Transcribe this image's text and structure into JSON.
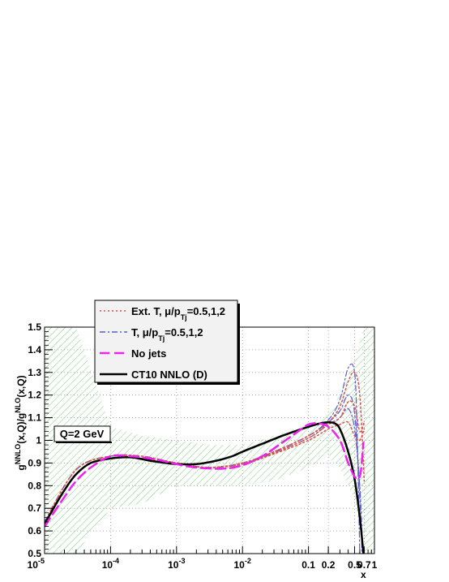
{
  "chart_data": {
    "type": "line",
    "xscale": "log",
    "xlim": [
      1e-05,
      1
    ],
    "ylim": [
      0.5,
      1.5
    ],
    "grid": true,
    "legend_position": "top-left",
    "xlabel": "x",
    "ylabel": {
      "g": "g",
      "sup1": "NNLO",
      "mid": "(x,Q)/g",
      "sup2": "NLO",
      "end": "(x,Q)"
    },
    "annotation": "Q=2 GeV",
    "x_ticks": [
      {
        "v": 1e-05,
        "base": "10",
        "exp": "-5"
      },
      {
        "v": 0.0001,
        "base": "10",
        "exp": "-4"
      },
      {
        "v": 0.001,
        "base": "10",
        "exp": "-3"
      },
      {
        "v": 0.01,
        "base": "10",
        "exp": "-2"
      },
      {
        "v": 0.1,
        "base": "0.1",
        "exp": ""
      },
      {
        "v": 0.2,
        "base": "0.2",
        "exp": ""
      },
      {
        "v": 0.5,
        "base": "0.5",
        "exp": ""
      },
      {
        "v": 0.7,
        "base": "0.7",
        "exp": ""
      },
      {
        "v": 1,
        "base": "1",
        "exp": ""
      }
    ],
    "y_ticks": [
      "0.5",
      "0.6",
      "0.7",
      "0.8",
      "0.9",
      "1",
      "1.1",
      "1.2",
      "1.3",
      "1.4",
      "1.5"
    ],
    "legend": [
      {
        "main": "Ext. T, μ/p",
        "sub": "Tj",
        "rest": "=0.5,1,2",
        "color": "#d9534f",
        "dash": "2,3",
        "width": 1.5
      },
      {
        "main": "T, μ/p",
        "sub": "Tj",
        "rest": "=0.5,1,2",
        "color": "#5b5bd6",
        "dash": "7,3,2,3",
        "width": 1.5
      },
      {
        "main": "No jets",
        "sub": "",
        "rest": "",
        "color": "#ee22ee",
        "dash": "12,6",
        "width": 2.5
      },
      {
        "main": "CT10 NNLO (D)",
        "sub": "",
        "rest": "",
        "color": "#000000",
        "dash": "",
        "width": 2.5
      }
    ],
    "band": {
      "color": "#7ccf7c",
      "x": [
        1e-05,
        3e-05,
        0.0001,
        0.0003,
        0.001,
        0.003,
        0.01,
        0.03,
        0.1,
        0.2,
        0.3,
        0.5,
        0.7,
        1
      ],
      "upper": [
        1.5,
        1.5,
        1.06,
        1.02,
        1.0,
        0.98,
        0.98,
        1.02,
        1.07,
        1.12,
        1.2,
        1.36,
        1.5,
        1.5
      ],
      "lower": [
        0.5,
        0.5,
        0.7,
        0.72,
        0.8,
        0.8,
        0.8,
        0.82,
        0.88,
        0.93,
        0.88,
        0.74,
        0.5,
        0.5
      ]
    },
    "series": [
      {
        "name": "CT10 NNLO (D)",
        "color": "#000000",
        "dash": "",
        "width": 2.5,
        "x": [
          1e-05,
          1.5e-05,
          2e-05,
          3e-05,
          5e-05,
          0.0001,
          0.0002,
          0.0004,
          0.0007,
          0.001,
          0.002,
          0.004,
          0.007,
          0.01,
          0.02,
          0.04,
          0.07,
          0.1,
          0.15,
          0.2,
          0.25,
          0.3,
          0.4,
          0.5,
          0.6,
          0.68
        ],
        "y": [
          0.63,
          0.72,
          0.78,
          0.85,
          0.9,
          0.92,
          0.925,
          0.91,
          0.9,
          0.895,
          0.895,
          0.91,
          0.93,
          0.95,
          0.985,
          1.02,
          1.045,
          1.06,
          1.075,
          1.08,
          1.075,
          1.05,
          0.95,
          0.83,
          0.66,
          0.5
        ]
      },
      {
        "name": "No jets",
        "color": "#ee22ee",
        "dash": "12,6",
        "width": 2.5,
        "x": [
          1e-05,
          2e-05,
          3e-05,
          5e-05,
          0.0001,
          0.0002,
          0.0005,
          0.001,
          0.002,
          0.005,
          0.01,
          0.02,
          0.04,
          0.07,
          0.1,
          0.14,
          0.2,
          0.3,
          0.4,
          0.5,
          0.56,
          0.62,
          0.68
        ],
        "y": [
          0.62,
          0.75,
          0.82,
          0.88,
          0.93,
          0.93,
          0.915,
          0.895,
          0.88,
          0.875,
          0.89,
          0.93,
          0.99,
          1.04,
          1.07,
          1.075,
          1.06,
          1.0,
          0.9,
          0.84,
          0.83,
          0.86,
          0.99
        ]
      },
      {
        "name": "T, μ/p=0.5",
        "color": "#5b5bd6",
        "dash": "7,3,2,3",
        "width": 1.2,
        "x": [
          1e-05,
          3e-05,
          0.0001,
          0.0003,
          0.001,
          0.003,
          0.01,
          0.03,
          0.1,
          0.2,
          0.3,
          0.4,
          0.5,
          0.55,
          0.6
        ],
        "y": [
          0.64,
          0.87,
          0.93,
          0.93,
          0.9,
          0.88,
          0.9,
          0.95,
          1.02,
          1.09,
          1.18,
          1.32,
          1.3,
          1.0,
          0.5
        ]
      },
      {
        "name": "T, μ/p=1",
        "color": "#5b5bd6",
        "dash": "7,3,2,3",
        "width": 1.2,
        "x": [
          1e-05,
          3e-05,
          0.0001,
          0.0003,
          0.001,
          0.003,
          0.01,
          0.03,
          0.1,
          0.2,
          0.3,
          0.4,
          0.5,
          0.6,
          0.65
        ],
        "y": [
          0.64,
          0.87,
          0.93,
          0.92,
          0.9,
          0.88,
          0.9,
          0.95,
          1.02,
          1.08,
          1.13,
          1.2,
          1.12,
          0.75,
          0.5
        ]
      },
      {
        "name": "T, μ/p=2",
        "color": "#5b5bd6",
        "dash": "7,3,2,3",
        "width": 1.2,
        "x": [
          1e-05,
          3e-05,
          0.0001,
          0.0003,
          0.001,
          0.003,
          0.01,
          0.03,
          0.1,
          0.2,
          0.3,
          0.4,
          0.5,
          0.6,
          0.66
        ],
        "y": [
          0.64,
          0.87,
          0.93,
          0.92,
          0.9,
          0.88,
          0.895,
          0.945,
          1.01,
          1.07,
          1.1,
          1.14,
          1.05,
          0.8,
          0.52
        ]
      },
      {
        "name": "Ext. T, μ/p=0.5",
        "color": "#d9534f",
        "dash": "2,3",
        "width": 1.5,
        "x": [
          1e-05,
          3e-05,
          0.0001,
          0.0003,
          0.001,
          0.003,
          0.01,
          0.03,
          0.1,
          0.2,
          0.3,
          0.4,
          0.5,
          0.6,
          0.7
        ],
        "y": [
          0.64,
          0.87,
          0.93,
          0.93,
          0.9,
          0.88,
          0.9,
          0.95,
          1.02,
          1.08,
          1.15,
          1.26,
          1.3,
          1.2,
          0.82
        ]
      },
      {
        "name": "Ext. T, μ/p=1",
        "color": "#d9534f",
        "dash": "2,3",
        "width": 1.5,
        "x": [
          1e-05,
          3e-05,
          0.0001,
          0.0003,
          0.001,
          0.003,
          0.01,
          0.03,
          0.1,
          0.2,
          0.3,
          0.4,
          0.5,
          0.6,
          0.7
        ],
        "y": [
          0.64,
          0.87,
          0.93,
          0.92,
          0.9,
          0.88,
          0.9,
          0.945,
          1.01,
          1.07,
          1.1,
          1.17,
          1.15,
          1.04,
          1.08
        ]
      },
      {
        "name": "Ext. T, μ/p=2",
        "color": "#d9534f",
        "dash": "2,3",
        "width": 1.5,
        "x": [
          1e-05,
          3e-05,
          0.0001,
          0.0003,
          0.001,
          0.003,
          0.01,
          0.03,
          0.1,
          0.2,
          0.3,
          0.4,
          0.5,
          0.6,
          0.7
        ],
        "y": [
          0.64,
          0.87,
          0.93,
          0.92,
          0.9,
          0.88,
          0.895,
          0.94,
          1.0,
          1.05,
          1.07,
          1.08,
          1.02,
          1.0,
          1.05
        ]
      }
    ]
  }
}
